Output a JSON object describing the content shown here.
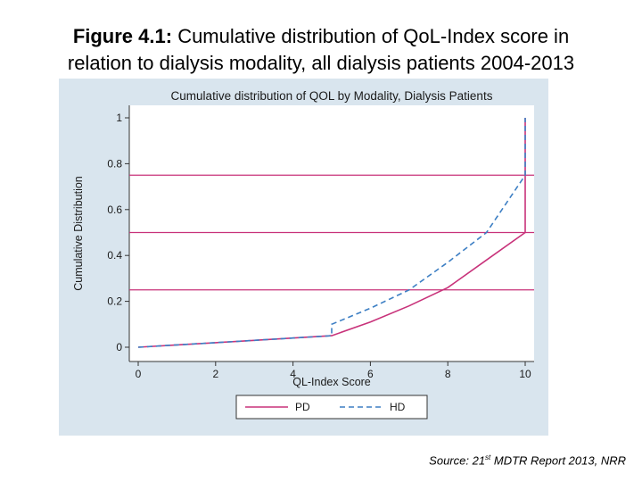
{
  "figure": {
    "label": "Figure 4.1:",
    "title_line1": "Cumulative distribution of QoL-Index score in",
    "title_line2": "relation to dialysis modality, all dialysis patients 2004-2013"
  },
  "source": {
    "prefix": "Source: 21",
    "superscript": "st",
    "suffix": " MDTR Report 2013, NRR"
  },
  "chart_data": {
    "type": "line",
    "title": "Cumulative distribution of QOL by Modality, Dialysis Patients",
    "xlabel": "QL-Index Score",
    "ylabel": "Cumulative Distribution",
    "xlim": [
      0,
      10
    ],
    "ylim": [
      0,
      1
    ],
    "xticks": [
      0,
      2,
      4,
      6,
      8,
      10
    ],
    "yticks": [
      0,
      0.2,
      0.4,
      0.6,
      0.8,
      1
    ],
    "ytick_labels": [
      "0",
      "0.2",
      "0.4",
      "0.6",
      "0.8",
      "1"
    ],
    "reference_lines": [
      0.25,
      0.5,
      0.75
    ],
    "legend_position": "bottom",
    "series": [
      {
        "name": "PD",
        "color": "#c8327a",
        "style": "solid",
        "x": [
          0,
          1,
          2,
          3,
          4,
          5,
          6,
          7,
          8,
          9,
          10,
          10
        ],
        "y": [
          0,
          0.01,
          0.02,
          0.03,
          0.04,
          0.05,
          0.11,
          0.18,
          0.26,
          0.38,
          0.5,
          1.0
        ]
      },
      {
        "name": "HD",
        "color": "#3d7fc4",
        "style": "dashed",
        "x": [
          0,
          1,
          2,
          3,
          4,
          5,
          5,
          6,
          7,
          8,
          9,
          10,
          10
        ],
        "y": [
          0,
          0.01,
          0.02,
          0.03,
          0.04,
          0.05,
          0.1,
          0.17,
          0.25,
          0.37,
          0.5,
          0.75,
          1.0
        ]
      }
    ],
    "colors": {
      "panel_background": "#d9e5ee",
      "plot_background": "#ffffff",
      "reference_line": "#c8327a"
    }
  }
}
